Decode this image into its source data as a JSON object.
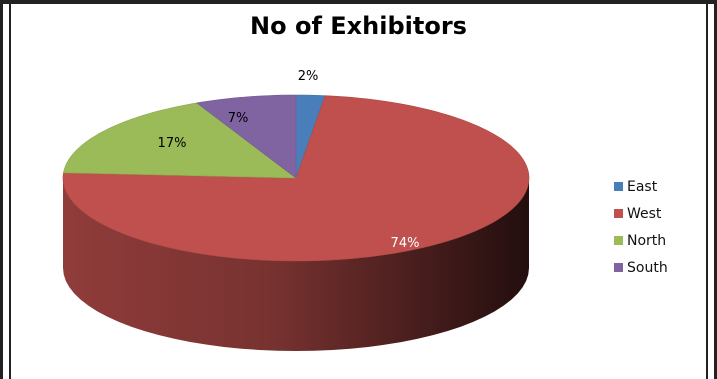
{
  "chart_data": {
    "type": "pie",
    "title": "No of Exhibitors",
    "categories": [
      "East",
      "West",
      "North",
      "South"
    ],
    "values": [
      2,
      74,
      17,
      7
    ],
    "labels": [
      "2%",
      "74%",
      "17%",
      "7%"
    ],
    "colors": [
      "#4a7ebb",
      "#c0504d",
      "#9bbb59",
      "#8064a2"
    ],
    "label_colors": [
      "#000000",
      "#ffffff",
      "#000000",
      "#000000"
    ],
    "legend_position": "right"
  }
}
